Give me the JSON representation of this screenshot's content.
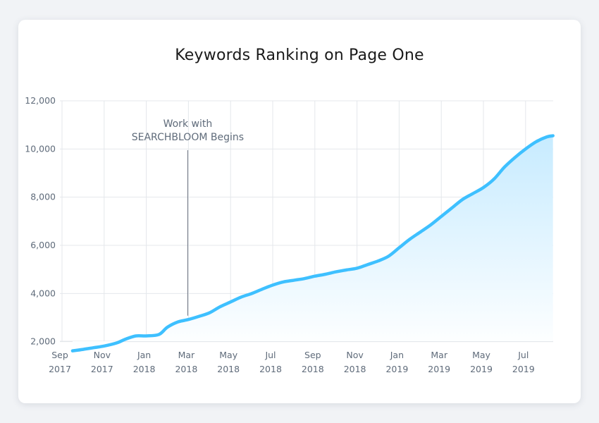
{
  "chart_data": {
    "type": "area",
    "title": "Keywords Ranking on Page One",
    "xlabel": "",
    "ylabel": "",
    "ylim": [
      0,
      12000
    ],
    "yticks": [
      2000,
      4000,
      6000,
      8000,
      10000,
      12000
    ],
    "ytick_labels": [
      "2,000",
      "4,000",
      "6,000",
      "8,000",
      "10,000",
      "12,000"
    ],
    "x_ticks": [
      {
        "month": 0,
        "line1": "Sep",
        "line2": "2017"
      },
      {
        "month": 2,
        "line1": "Nov",
        "line2": "2017"
      },
      {
        "month": 4,
        "line1": "Jan",
        "line2": "2018"
      },
      {
        "month": 6,
        "line1": "Mar",
        "line2": "2018"
      },
      {
        "month": 8,
        "line1": "May",
        "line2": "2018"
      },
      {
        "month": 10,
        "line1": "Jul",
        "line2": "2018"
      },
      {
        "month": 12,
        "line1": "Sep",
        "line2": "2018"
      },
      {
        "month": 14,
        "line1": "Nov",
        "line2": "2018"
      },
      {
        "month": 16,
        "line1": "Jan",
        "line2": "2019"
      },
      {
        "month": 18,
        "line1": "Mar",
        "line2": "2019"
      },
      {
        "month": 20,
        "line1": "May",
        "line2": "2019"
      },
      {
        "month": 22,
        "line1": "Jul",
        "line2": "2019"
      }
    ],
    "series": [
      {
        "name": "",
        "points": [
          [
            0.5,
            1620
          ],
          [
            1.0,
            1680
          ],
          [
            1.5,
            1750
          ],
          [
            2.0,
            1820
          ],
          [
            2.6,
            1950
          ],
          [
            3.0,
            2100
          ],
          [
            3.5,
            2240
          ],
          [
            4.0,
            2240
          ],
          [
            4.6,
            2300
          ],
          [
            5.0,
            2600
          ],
          [
            5.5,
            2820
          ],
          [
            6.0,
            2920
          ],
          [
            6.5,
            3050
          ],
          [
            7.0,
            3200
          ],
          [
            7.5,
            3450
          ],
          [
            8.0,
            3650
          ],
          [
            8.5,
            3850
          ],
          [
            9.0,
            4000
          ],
          [
            9.5,
            4180
          ],
          [
            10.0,
            4350
          ],
          [
            10.5,
            4480
          ],
          [
            11.0,
            4550
          ],
          [
            11.5,
            4620
          ],
          [
            12.0,
            4720
          ],
          [
            12.5,
            4800
          ],
          [
            13.0,
            4900
          ],
          [
            13.5,
            4980
          ],
          [
            14.0,
            5050
          ],
          [
            14.5,
            5200
          ],
          [
            15.0,
            5350
          ],
          [
            15.5,
            5550
          ],
          [
            16.0,
            5900
          ],
          [
            16.5,
            6250
          ],
          [
            17.0,
            6550
          ],
          [
            17.5,
            6850
          ],
          [
            18.0,
            7200
          ],
          [
            18.5,
            7550
          ],
          [
            19.0,
            7900
          ],
          [
            19.5,
            8150
          ],
          [
            20.0,
            8400
          ],
          [
            20.5,
            8750
          ],
          [
            21.0,
            9250
          ],
          [
            21.5,
            9650
          ],
          [
            22.0,
            10000
          ],
          [
            22.5,
            10300
          ],
          [
            23.0,
            10500
          ],
          [
            23.3,
            10550
          ]
        ]
      }
    ],
    "annotation": {
      "month": 6.0,
      "value": 3080,
      "label_line1": "Work with",
      "label_line2": "SEARCHBLOOM Begins"
    },
    "grid": true,
    "colors": {
      "line": "#3ec0ff",
      "fill_top": "#c7ebff",
      "fill_bottom": "#ffffff",
      "grid": "#e4e7eb",
      "annotation_line": "#6b7280"
    }
  }
}
